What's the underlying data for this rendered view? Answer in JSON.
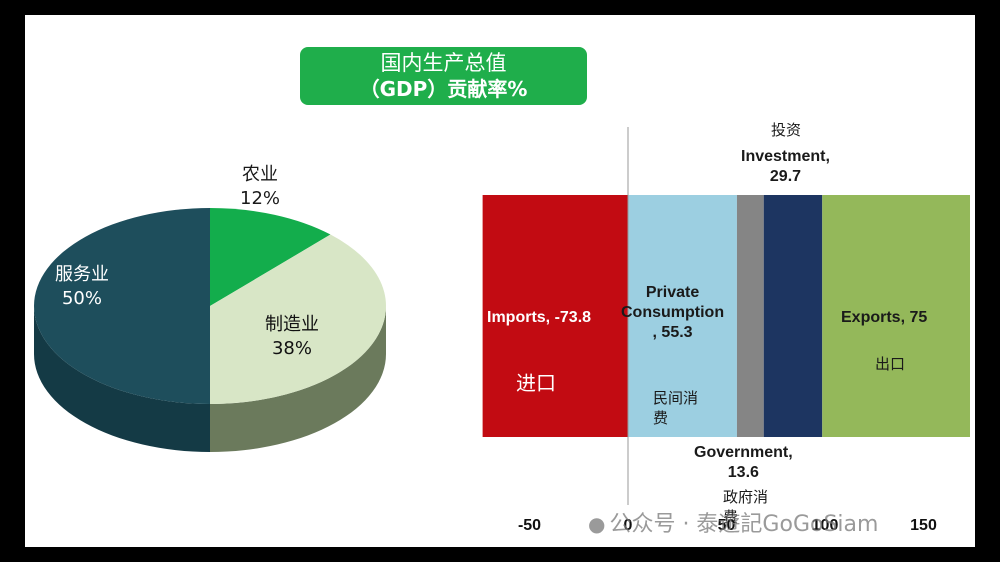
{
  "title": {
    "line1": "国内生产总值",
    "line2": "（GDP）贡献率%"
  },
  "chart_data": [
    {
      "type": "pie",
      "slices": [
        {
          "label": "农业",
          "pct_label": "12%",
          "value": 12,
          "color": "#13ad4c"
        },
        {
          "label": "制造业",
          "pct_label": "38%",
          "value": 38,
          "color": "#d8e6c6"
        },
        {
          "label": "服务业",
          "pct_label": "50%",
          "value": 50,
          "color": "#1e4e5c"
        }
      ]
    },
    {
      "type": "bar",
      "orientation": "horizontal-stacked",
      "xlim": [
        -75,
        170
      ],
      "xticks": [
        "-50",
        "0",
        "50",
        "100",
        "150"
      ],
      "xtick_values": [
        -50,
        0,
        50,
        100,
        150
      ],
      "segments": [
        {
          "name": "Imports",
          "value": -73.8,
          "color": "#c20b12",
          "label_en": "Imports, -73.8",
          "label_zh": "进口"
        },
        {
          "name": "Private Consumption",
          "value": 55.3,
          "color": "#9ccfe1",
          "label_en": [
            "Private",
            "Consumption",
            ", 55.3"
          ],
          "label_zh": [
            "民间消",
            "费"
          ]
        },
        {
          "name": "Government",
          "value": 13.6,
          "color": "#858585",
          "label_en": [
            "Government,",
            "13.6"
          ],
          "label_zh": [
            "政府消",
            "费"
          ]
        },
        {
          "name": "Investment",
          "value": 29.7,
          "color": "#1d3561",
          "label_en": [
            "Investment,",
            "29.7"
          ],
          "label_zh": "投资"
        },
        {
          "name": "Exports",
          "value": 75,
          "color": "#94b85a",
          "label_en": "Exports, 75",
          "label_zh": "出口"
        }
      ]
    }
  ],
  "watermark": {
    "icon": "wechat-icon",
    "text": "公众号 · 泰遊記GoGoSiam"
  }
}
